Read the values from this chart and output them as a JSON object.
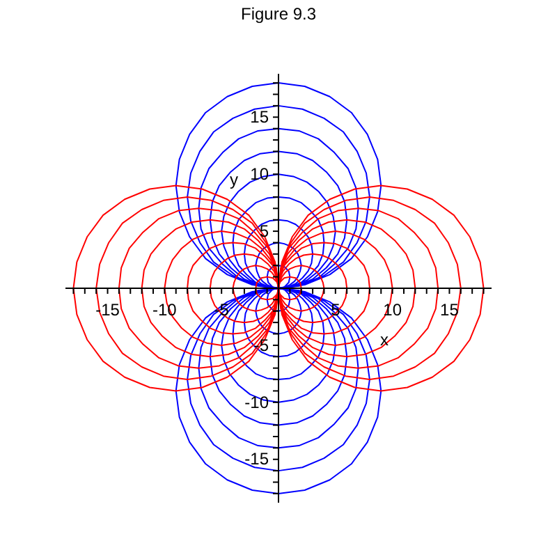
{
  "chart_data": {
    "type": "line",
    "title": "Figure 9.3",
    "xlabel": "x",
    "ylabel": "y",
    "xlim": [
      -18.7,
      18.7
    ],
    "ylim": [
      -18.8,
      18.8
    ],
    "xticks": [
      {
        "value": -18,
        "label": null
      },
      {
        "value": -17,
        "label": null
      },
      {
        "value": -16,
        "label": null
      },
      -15,
      {
        "value": -14,
        "label": null
      },
      {
        "value": -13,
        "label": null
      },
      {
        "value": -12,
        "label": null
      },
      {
        "value": -11,
        "label": null
      },
      -10,
      {
        "value": -9,
        "label": null
      },
      {
        "value": -8,
        "label": null
      },
      {
        "value": -7,
        "label": null
      },
      {
        "value": -6,
        "label": null
      },
      -5,
      {
        "value": -4,
        "label": null
      },
      {
        "value": -3,
        "label": null
      },
      {
        "value": -2,
        "label": null
      },
      {
        "value": -1,
        "label": null
      },
      {
        "value": 1,
        "label": null
      },
      {
        "value": 2,
        "label": null
      },
      {
        "value": 3,
        "label": null
      },
      {
        "value": 4,
        "label": null
      },
      5,
      {
        "value": 6,
        "label": null
      },
      {
        "value": 7,
        "label": null
      },
      {
        "value": 8,
        "label": null
      },
      {
        "value": 9,
        "label": null
      },
      10,
      {
        "value": 11,
        "label": null
      },
      {
        "value": 12,
        "label": null
      },
      {
        "value": 13,
        "label": null
      },
      {
        "value": 14,
        "label": null
      },
      15,
      {
        "value": 16,
        "label": null
      },
      {
        "value": 17,
        "label": null
      },
      {
        "value": 18,
        "label": null
      }
    ],
    "yticks": [
      {
        "value": -18,
        "label": null
      },
      {
        "value": -17,
        "label": null
      },
      {
        "value": -16,
        "label": null
      },
      -15,
      {
        "value": -14,
        "label": null
      },
      {
        "value": -13,
        "label": null
      },
      {
        "value": -12,
        "label": null
      },
      {
        "value": -11,
        "label": null
      },
      -10,
      {
        "value": -9,
        "label": null
      },
      {
        "value": -8,
        "label": null
      },
      {
        "value": -7,
        "label": null
      },
      {
        "value": -6,
        "label": null
      },
      -5,
      {
        "value": -4,
        "label": null
      },
      {
        "value": -3,
        "label": null
      },
      {
        "value": -2,
        "label": null
      },
      {
        "value": -1,
        "label": null
      },
      {
        "value": 1,
        "label": null
      },
      {
        "value": 2,
        "label": null
      },
      {
        "value": 3,
        "label": null
      },
      {
        "value": 4,
        "label": null
      },
      5,
      {
        "value": 6,
        "label": null
      },
      {
        "value": 7,
        "label": null
      },
      {
        "value": 8,
        "label": null
      },
      {
        "value": 9,
        "label": null
      },
      10,
      {
        "value": 11,
        "label": null
      },
      {
        "value": 12,
        "label": null
      },
      {
        "value": 13,
        "label": null
      },
      {
        "value": 14,
        "label": null
      },
      15,
      {
        "value": 16,
        "label": null
      },
      {
        "value": 17,
        "label": null
      },
      {
        "value": 18,
        "label": null
      }
    ],
    "series": [
      {
        "color": "#0000ff",
        "x": [
          -1,
          -0.9,
          -0.5,
          0,
          0.5,
          0.9,
          1
        ],
        "values": [
          1,
          0.5,
          0.1,
          0,
          0.1,
          0.5,
          1
        ]
      },
      {
        "color": "#0000ff",
        "x": [
          -1,
          -0.9,
          -0.5,
          0,
          0.5,
          0.9,
          1
        ],
        "values": [
          1,
          1.5,
          1.9,
          2,
          1.9,
          1.5,
          1
        ]
      },
      {
        "color": "#0000ff",
        "x": [
          -2,
          -1.9,
          -1.7,
          -1.4,
          -1,
          -0.5,
          0,
          0.5,
          1,
          1.4,
          1.7,
          1.9,
          2
        ],
        "values": [
          2,
          1.5,
          1,
          0.6,
          0.3,
          0.1,
          0,
          0.1,
          0.3,
          0.6,
          1,
          1.5,
          2
        ]
      },
      {
        "color": "#0000ff",
        "x": [
          -2,
          -1.9,
          -1.7,
          -1.4,
          -1,
          -0.5,
          0,
          0.5,
          1,
          1.4,
          1.7,
          1.9,
          2
        ],
        "values": [
          2,
          2.5,
          3,
          3.4,
          3.7,
          3.9,
          4,
          3.9,
          3.7,
          3.4,
          3,
          2.5,
          2
        ]
      },
      {
        "color": "#0000ff",
        "x": [
          -3,
          -2.9,
          -2.6,
          -2.1,
          -1.5,
          -0.8,
          0,
          0.8,
          1.5,
          2.1,
          2.6,
          2.9,
          3
        ],
        "values": [
          3,
          2.2,
          1.5,
          0.9,
          0.4,
          0.1,
          0,
          0.1,
          0.4,
          0.9,
          1.5,
          2.2,
          3
        ]
      },
      {
        "color": "#0000ff",
        "x": [
          -3,
          -2.9,
          -2.6,
          -2.1,
          -1.5,
          -0.8,
          0,
          0.8,
          1.5,
          2.1,
          2.6,
          2.9,
          3
        ],
        "values": [
          3,
          3.8,
          4.5,
          5.1,
          5.6,
          5.9,
          6,
          5.9,
          5.6,
          5.1,
          4.5,
          3.8,
          3
        ]
      },
      {
        "color": "#0000ff",
        "x": [
          -4,
          -3.9,
          -3.5,
          -2.8,
          -2,
          -1,
          0,
          1,
          2,
          2.8,
          3.5,
          3.9,
          4
        ],
        "values": [
          4,
          3,
          2,
          1.2,
          0.5,
          0.1,
          0,
          0.1,
          0.5,
          1.2,
          2,
          3,
          4
        ]
      },
      {
        "color": "#0000ff",
        "x": [
          -4,
          -3.9,
          -3.5,
          -2.8,
          -2,
          -1,
          0,
          1,
          2,
          2.8,
          3.5,
          3.9,
          4
        ],
        "values": [
          4,
          5,
          6,
          6.8,
          7.5,
          7.9,
          8,
          7.9,
          7.5,
          6.8,
          6,
          5,
          4
        ]
      },
      {
        "color": "#0000ff",
        "x": [
          -5,
          -4.8,
          -4.3,
          -3.5,
          -2.5,
          -1.3,
          0,
          1.3,
          2.5,
          3.5,
          4.3,
          4.8,
          5
        ],
        "values": [
          5,
          3.7,
          2.5,
          1.5,
          0.7,
          0.2,
          0,
          0.2,
          0.7,
          1.5,
          2.5,
          3.7,
          5
        ]
      },
      {
        "color": "#0000ff",
        "x": [
          -5,
          -4.8,
          -4.3,
          -3.5,
          -2.5,
          -1.3,
          0,
          1.3,
          2.5,
          3.5,
          4.3,
          4.8,
          5
        ],
        "values": [
          5,
          6.3,
          7.5,
          8.5,
          9.3,
          9.8,
          10,
          9.8,
          9.3,
          8.5,
          7.5,
          6.3,
          5
        ]
      },
      {
        "color": "#0000ff",
        "x": [
          -6,
          -5.8,
          -5.2,
          -4.2,
          -3,
          -1.6,
          0,
          1.6,
          3,
          4.2,
          5.2,
          5.8,
          6
        ],
        "values": [
          6,
          4.4,
          3,
          1.8,
          0.8,
          0.2,
          0,
          0.2,
          0.8,
          1.8,
          3,
          4.4,
          6
        ]
      },
      {
        "color": "#0000ff",
        "x": [
          -6,
          -5.8,
          -5.2,
          -4.2,
          -3,
          -1.6,
          0,
          1.6,
          3,
          4.2,
          5.2,
          5.8,
          6
        ],
        "values": [
          6,
          7.6,
          9,
          10.2,
          11.2,
          11.8,
          12,
          11.8,
          11.2,
          10.2,
          9,
          7.6,
          6
        ]
      },
      {
        "color": "#0000ff",
        "x": [
          -7,
          -6.8,
          -6.1,
          -4.9,
          -3.5,
          -1.8,
          0,
          1.8,
          3.5,
          4.9,
          6.1,
          6.8,
          7
        ],
        "values": [
          7,
          5.2,
          3.5,
          2.1,
          0.9,
          0.2,
          0,
          0.2,
          0.9,
          2.1,
          3.5,
          5.2,
          7
        ]
      },
      {
        "color": "#0000ff",
        "x": [
          -7,
          -6.8,
          -6.1,
          -4.9,
          -3.5,
          -1.8,
          0,
          1.8,
          3.5,
          4.9,
          6.1,
          6.8,
          7
        ],
        "values": [
          7,
          8.8,
          10.5,
          11.9,
          13.1,
          13.8,
          14,
          13.8,
          13.1,
          11.9,
          10.5,
          8.8,
          7
        ]
      },
      {
        "color": "#0000ff",
        "x": [
          -8,
          -7.7,
          -6.9,
          -5.7,
          -4,
          -2.1,
          0,
          2.1,
          4,
          5.7,
          6.9,
          7.7,
          8
        ],
        "values": [
          8,
          5.9,
          4,
          2.3,
          1.1,
          0.3,
          0,
          0.3,
          1.1,
          2.3,
          4,
          5.9,
          8
        ]
      },
      {
        "color": "#0000ff",
        "x": [
          -8,
          -7.7,
          -6.9,
          -5.7,
          -4,
          -2.1,
          0,
          2.1,
          4,
          5.7,
          6.9,
          7.7,
          8
        ],
        "values": [
          8,
          10.1,
          12,
          13.7,
          14.9,
          15.7,
          16,
          15.7,
          14.9,
          13.7,
          12,
          10.1,
          8
        ]
      },
      {
        "color": "#0000ff",
        "x": [
          -9,
          -8.7,
          -7.8,
          -6.4,
          -4.5,
          -2.3,
          0,
          2.3,
          4.5,
          6.4,
          7.8,
          8.7,
          9
        ],
        "values": [
          9,
          6.7,
          4.5,
          2.6,
          1.2,
          0.3,
          0,
          0.3,
          1.2,
          2.6,
          4.5,
          6.7,
          9
        ]
      },
      {
        "color": "#0000ff",
        "x": [
          -9,
          -8.7,
          -7.8,
          -6.4,
          -4.5,
          -2.3,
          0,
          2.3,
          4.5,
          6.4,
          7.8,
          8.7,
          9
        ],
        "values": [
          9,
          11.3,
          13.5,
          15.4,
          16.8,
          17.7,
          18,
          17.7,
          16.8,
          15.4,
          13.5,
          11.3,
          9
        ]
      },
      {
        "color": "#0000ff",
        "x": [
          -1,
          -0.9,
          -0.5,
          0,
          0.5,
          0.9,
          1
        ],
        "values": [
          -1,
          -0.5,
          -0.1,
          0,
          -0.1,
          -0.5,
          -1
        ]
      },
      {
        "color": "#0000ff",
        "x": [
          -1,
          -0.9,
          -0.5,
          0,
          0.5,
          0.9,
          1
        ],
        "values": [
          -1,
          -1.5,
          -1.9,
          -2,
          -1.9,
          -1.5,
          -1
        ]
      },
      {
        "color": "#0000ff",
        "x": [
          -2,
          -1.9,
          -1.7,
          -1.4,
          -1,
          -0.5,
          0,
          0.5,
          1,
          1.4,
          1.7,
          1.9,
          2
        ],
        "values": [
          -2,
          -1.5,
          -1,
          -0.6,
          -0.3,
          -0.1,
          0,
          -0.1,
          -0.3,
          -0.6,
          -1,
          -1.5,
          -2
        ]
      },
      {
        "color": "#0000ff",
        "x": [
          -2,
          -1.9,
          -1.7,
          -1.4,
          -1,
          -0.5,
          0,
          0.5,
          1,
          1.4,
          1.7,
          1.9,
          2
        ],
        "values": [
          -2,
          -2.5,
          -3,
          -3.4,
          -3.7,
          -3.9,
          -4,
          -3.9,
          -3.7,
          -3.4,
          -3,
          -2.5,
          -2
        ]
      },
      {
        "color": "#0000ff",
        "x": [
          -3,
          -2.9,
          -2.6,
          -2.1,
          -1.5,
          -0.8,
          0,
          0.8,
          1.5,
          2.1,
          2.6,
          2.9,
          3
        ],
        "values": [
          -3,
          -2.2,
          -1.5,
          -0.9,
          -0.4,
          -0.1,
          0,
          -0.1,
          -0.4,
          -0.9,
          -1.5,
          -2.2,
          -3
        ]
      },
      {
        "color": "#0000ff",
        "x": [
          -3,
          -2.9,
          -2.6,
          -2.1,
          -1.5,
          -0.8,
          0,
          0.8,
          1.5,
          2.1,
          2.6,
          2.9,
          3
        ],
        "values": [
          -3,
          -3.8,
          -4.5,
          -5.1,
          -5.6,
          -5.9,
          -6,
          -5.9,
          -5.6,
          -5.1,
          -4.5,
          -3.8,
          -3
        ]
      },
      {
        "color": "#0000ff",
        "x": [
          -4,
          -3.9,
          -3.5,
          -2.8,
          -2,
          -1,
          0,
          1,
          2,
          2.8,
          3.5,
          3.9,
          4
        ],
        "values": [
          -4,
          -3,
          -2,
          -1.2,
          -0.5,
          -0.1,
          0,
          -0.1,
          -0.5,
          -1.2,
          -2,
          -3,
          -4
        ]
      },
      {
        "color": "#0000ff",
        "x": [
          -4,
          -3.9,
          -3.5,
          -2.8,
          -2,
          -1,
          0,
          1,
          2,
          2.8,
          3.5,
          3.9,
          4
        ],
        "values": [
          -4,
          -5,
          -6,
          -6.8,
          -7.5,
          -7.9,
          -8,
          -7.9,
          -7.5,
          -6.8,
          -6,
          -5,
          -4
        ]
      },
      {
        "color": "#0000ff",
        "x": [
          -5,
          -4.8,
          -4.3,
          -3.5,
          -2.5,
          -1.3,
          0,
          1.3,
          2.5,
          3.5,
          4.3,
          4.8,
          5
        ],
        "values": [
          -5,
          -3.7,
          -2.5,
          -1.5,
          -0.7,
          -0.2,
          0,
          -0.2,
          -0.7,
          -1.5,
          -2.5,
          -3.7,
          -5
        ]
      },
      {
        "color": "#0000ff",
        "x": [
          -5,
          -4.8,
          -4.3,
          -3.5,
          -2.5,
          -1.3,
          0,
          1.3,
          2.5,
          3.5,
          4.3,
          4.8,
          5
        ],
        "values": [
          -5,
          -6.3,
          -7.5,
          -8.5,
          -9.3,
          -9.8,
          -10,
          -9.8,
          -9.3,
          -8.5,
          -7.5,
          -6.3,
          -5
        ]
      },
      {
        "color": "#0000ff",
        "x": [
          -6,
          -5.8,
          -5.2,
          -4.2,
          -3,
          -1.6,
          0,
          1.6,
          3,
          4.2,
          5.2,
          5.8,
          6
        ],
        "values": [
          -6,
          -4.4,
          -3,
          -1.8,
          -0.8,
          -0.2,
          0,
          -0.2,
          -0.8,
          -1.8,
          -3,
          -4.4,
          -6
        ]
      },
      {
        "color": "#0000ff",
        "x": [
          -6,
          -5.8,
          -5.2,
          -4.2,
          -3,
          -1.6,
          0,
          1.6,
          3,
          4.2,
          5.2,
          5.8,
          6
        ],
        "values": [
          -6,
          -7.6,
          -9,
          -10.2,
          -11.2,
          -11.8,
          -12,
          -11.8,
          -11.2,
          -10.2,
          -9,
          -7.6,
          -6
        ]
      },
      {
        "color": "#0000ff",
        "x": [
          -7,
          -6.8,
          -6.1,
          -4.9,
          -3.5,
          -1.8,
          0,
          1.8,
          3.5,
          4.9,
          6.1,
          6.8,
          7
        ],
        "values": [
          -7,
          -5.2,
          -3.5,
          -2.1,
          -0.9,
          -0.2,
          0,
          -0.2,
          -0.9,
          -2.1,
          -3.5,
          -5.2,
          -7
        ]
      },
      {
        "color": "#0000ff",
        "x": [
          -7,
          -6.8,
          -6.1,
          -4.9,
          -3.5,
          -1.8,
          0,
          1.8,
          3.5,
          4.9,
          6.1,
          6.8,
          7
        ],
        "values": [
          -7,
          -8.8,
          -10.5,
          -11.9,
          -13.1,
          -13.8,
          -14,
          -13.8,
          -13.1,
          -11.9,
          -10.5,
          -8.8,
          -7
        ]
      },
      {
        "color": "#0000ff",
        "x": [
          -8,
          -7.7,
          -6.9,
          -5.7,
          -4,
          -2.1,
          0,
          2.1,
          4,
          5.7,
          6.9,
          7.7,
          8
        ],
        "values": [
          -8,
          -5.9,
          -4,
          -2.3,
          -1.1,
          -0.3,
          0,
          -0.3,
          -1.1,
          -2.3,
          -4,
          -5.9,
          -8
        ]
      },
      {
        "color": "#0000ff",
        "x": [
          -8,
          -7.7,
          -6.9,
          -5.7,
          -4,
          -2.1,
          0,
          2.1,
          4,
          5.7,
          6.9,
          7.7,
          8
        ],
        "values": [
          -8,
          -10.1,
          -12,
          -13.7,
          -14.9,
          -15.7,
          -16,
          -15.7,
          -14.9,
          -13.7,
          -12,
          -10.1,
          -8
        ]
      },
      {
        "color": "#0000ff",
        "x": [
          -9,
          -8.7,
          -7.8,
          -6.4,
          -4.5,
          -2.3,
          0,
          2.3,
          4.5,
          6.4,
          7.8,
          8.7,
          9
        ],
        "values": [
          -9,
          -6.7,
          -4.5,
          -2.6,
          -1.2,
          -0.3,
          0,
          -0.3,
          -1.2,
          -2.6,
          -4.5,
          -6.7,
          -9
        ]
      },
      {
        "color": "#0000ff",
        "x": [
          -9,
          -8.7,
          -7.8,
          -6.4,
          -4.5,
          -2.3,
          0,
          2.3,
          4.5,
          6.4,
          7.8,
          8.7,
          9
        ],
        "values": [
          -9,
          -11.3,
          -13.5,
          -15.4,
          -16.8,
          -17.7,
          -18,
          -17.7,
          -16.8,
          -15.4,
          -13.5,
          -11.3,
          -9
        ]
      },
      {
        "color": "#ff0000",
        "x": [
          0,
          0.1,
          0.5,
          1,
          1.5,
          1.9,
          2
        ],
        "values": [
          0,
          0.5,
          0.9,
          1,
          0.9,
          0.5,
          0
        ]
      },
      {
        "color": "#ff0000",
        "x": [
          0,
          0.1,
          0.5,
          1,
          1.5,
          1.9,
          2
        ],
        "values": [
          0,
          -0.5,
          -0.9,
          -1,
          -0.9,
          -0.5,
          0
        ]
      },
      {
        "color": "#ff0000",
        "x": [
          0,
          0.1,
          0.3,
          0.6,
          1,
          1.5,
          2,
          2.5,
          3,
          3.4,
          3.7,
          3.9,
          4
        ],
        "values": [
          0,
          0.5,
          1,
          1.4,
          1.7,
          1.9,
          2,
          1.9,
          1.7,
          1.4,
          1,
          0.5,
          0
        ]
      },
      {
        "color": "#ff0000",
        "x": [
          0,
          0.1,
          0.3,
          0.6,
          1,
          1.5,
          2,
          2.5,
          3,
          3.4,
          3.7,
          3.9,
          4
        ],
        "values": [
          0,
          -0.5,
          -1,
          -1.4,
          -1.7,
          -1.9,
          -2,
          -1.9,
          -1.7,
          -1.4,
          -1,
          -0.5,
          0
        ]
      },
      {
        "color": "#ff0000",
        "x": [
          0,
          0.1,
          0.4,
          0.9,
          1.5,
          2.2,
          3,
          3.8,
          4.5,
          5.1,
          5.6,
          5.9,
          6
        ],
        "values": [
          0,
          0.8,
          1.5,
          2.1,
          2.6,
          2.9,
          3,
          2.9,
          2.6,
          2.1,
          1.5,
          0.8,
          0
        ]
      },
      {
        "color": "#ff0000",
        "x": [
          0,
          0.1,
          0.4,
          0.9,
          1.5,
          2.2,
          3,
          3.8,
          4.5,
          5.1,
          5.6,
          5.9,
          6
        ],
        "values": [
          0,
          -0.8,
          -1.5,
          -2.1,
          -2.6,
          -2.9,
          -3,
          -2.9,
          -2.6,
          -2.1,
          -1.5,
          -0.8,
          0
        ]
      },
      {
        "color": "#ff0000",
        "x": [
          0,
          0.1,
          0.5,
          1.2,
          2,
          3,
          4,
          5,
          6,
          6.8,
          7.5,
          7.9,
          8
        ],
        "values": [
          0,
          1,
          2,
          2.8,
          3.5,
          3.9,
          4,
          3.9,
          3.5,
          2.8,
          2,
          1,
          0
        ]
      },
      {
        "color": "#ff0000",
        "x": [
          0,
          0.1,
          0.5,
          1.2,
          2,
          3,
          4,
          5,
          6,
          6.8,
          7.5,
          7.9,
          8
        ],
        "values": [
          0,
          -1,
          -2,
          -2.8,
          -3.5,
          -3.9,
          -4,
          -3.9,
          -3.5,
          -2.8,
          -2,
          -1,
          0
        ]
      },
      {
        "color": "#ff0000",
        "x": [
          0,
          0.2,
          0.7,
          1.5,
          2.5,
          3.7,
          5,
          6.3,
          7.5,
          8.5,
          9.3,
          9.8,
          10
        ],
        "values": [
          0,
          1.3,
          2.5,
          3.5,
          4.3,
          4.8,
          5,
          4.8,
          4.3,
          3.5,
          2.5,
          1.3,
          0
        ]
      },
      {
        "color": "#ff0000",
        "x": [
          0,
          0.2,
          0.7,
          1.5,
          2.5,
          3.7,
          5,
          6.3,
          7.5,
          8.5,
          9.3,
          9.8,
          10
        ],
        "values": [
          0,
          -1.3,
          -2.5,
          -3.5,
          -4.3,
          -4.8,
          -5,
          -4.8,
          -4.3,
          -3.5,
          -2.5,
          -1.3,
          0
        ]
      },
      {
        "color": "#ff0000",
        "x": [
          0,
          0.2,
          0.8,
          1.8,
          3,
          4.4,
          6,
          7.6,
          9,
          10.2,
          11.2,
          11.8,
          12
        ],
        "values": [
          0,
          1.6,
          3,
          4.2,
          5.2,
          5.8,
          6,
          5.8,
          5.2,
          4.2,
          3,
          1.6,
          0
        ]
      },
      {
        "color": "#ff0000",
        "x": [
          0,
          0.2,
          0.8,
          1.8,
          3,
          4.4,
          6,
          7.6,
          9,
          10.2,
          11.2,
          11.8,
          12
        ],
        "values": [
          0,
          -1.6,
          -3,
          -4.2,
          -5.2,
          -5.8,
          -6,
          -5.8,
          -5.2,
          -4.2,
          -3,
          -1.6,
          0
        ]
      },
      {
        "color": "#ff0000",
        "x": [
          0,
          0.2,
          0.9,
          2.1,
          3.5,
          5.2,
          7,
          8.8,
          10.5,
          11.9,
          13.1,
          13.8,
          14
        ],
        "values": [
          0,
          1.8,
          3.5,
          4.9,
          6.1,
          6.8,
          7,
          6.8,
          6.1,
          4.9,
          3.5,
          1.8,
          0
        ]
      },
      {
        "color": "#ff0000",
        "x": [
          0,
          0.2,
          0.9,
          2.1,
          3.5,
          5.2,
          7,
          8.8,
          10.5,
          11.9,
          13.1,
          13.8,
          14
        ],
        "values": [
          0,
          -1.8,
          -3.5,
          -4.9,
          -6.1,
          -6.8,
          -7,
          -6.8,
          -6.1,
          -4.9,
          -3.5,
          -1.8,
          0
        ]
      },
      {
        "color": "#ff0000",
        "x": [
          0,
          0.3,
          1.1,
          2.3,
          4,
          5.9,
          8,
          10.1,
          12,
          13.7,
          14.9,
          15.7,
          16
        ],
        "values": [
          0,
          2.1,
          4,
          5.7,
          6.9,
          7.7,
          8,
          7.7,
          6.9,
          5.7,
          4,
          2.1,
          0
        ]
      },
      {
        "color": "#ff0000",
        "x": [
          0,
          0.3,
          1.1,
          2.3,
          4,
          5.9,
          8,
          10.1,
          12,
          13.7,
          14.9,
          15.7,
          16
        ],
        "values": [
          0,
          -2.1,
          -4,
          -5.7,
          -6.9,
          -7.7,
          -8,
          -7.7,
          -6.9,
          -5.7,
          -4,
          -2.1,
          0
        ]
      },
      {
        "color": "#ff0000",
        "x": [
          0,
          0.3,
          1.2,
          2.6,
          4.5,
          6.7,
          9,
          11.3,
          13.5,
          15.4,
          16.8,
          17.7,
          18
        ],
        "values": [
          0,
          2.3,
          4.5,
          6.4,
          7.8,
          8.7,
          9,
          8.7,
          7.8,
          6.4,
          4.5,
          2.3,
          0
        ]
      },
      {
        "color": "#ff0000",
        "x": [
          0,
          0.3,
          1.2,
          2.6,
          4.5,
          6.7,
          9,
          11.3,
          13.5,
          15.4,
          16.8,
          17.7,
          18
        ],
        "values": [
          0,
          -2.3,
          -4.5,
          -6.4,
          -7.8,
          -8.7,
          -9,
          -8.7,
          -7.8,
          -6.4,
          -4.5,
          -2.3,
          0
        ]
      },
      {
        "color": "#ff0000",
        "x": [
          -2,
          -1.9,
          -1.5,
          -1,
          -0.5,
          -0.1,
          0
        ],
        "values": [
          0,
          0.5,
          0.9,
          1,
          0.9,
          0.5,
          0
        ]
      },
      {
        "color": "#ff0000",
        "x": [
          -2,
          -1.9,
          -1.5,
          -1,
          -0.5,
          -0.1,
          0
        ],
        "values": [
          0,
          -0.5,
          -0.9,
          -1,
          -0.9,
          -0.5,
          0
        ]
      },
      {
        "color": "#ff0000",
        "x": [
          -4,
          -3.9,
          -3.7,
          -3.4,
          -3,
          -2.5,
          -2,
          -1.5,
          -1,
          -0.6,
          -0.3,
          -0.1,
          0
        ],
        "values": [
          0,
          0.5,
          1,
          1.4,
          1.7,
          1.9,
          2,
          1.9,
          1.7,
          1.4,
          1,
          0.5,
          0
        ]
      },
      {
        "color": "#ff0000",
        "x": [
          -4,
          -3.9,
          -3.7,
          -3.4,
          -3,
          -2.5,
          -2,
          -1.5,
          -1,
          -0.6,
          -0.3,
          -0.1,
          0
        ],
        "values": [
          0,
          -0.5,
          -1,
          -1.4,
          -1.7,
          -1.9,
          -2,
          -1.9,
          -1.7,
          -1.4,
          -1,
          -0.5,
          0
        ]
      },
      {
        "color": "#ff0000",
        "x": [
          -6,
          -5.9,
          -5.6,
          -5.1,
          -4.5,
          -3.8,
          -3,
          -2.2,
          -1.5,
          -0.9,
          -0.4,
          -0.1,
          0
        ],
        "values": [
          0,
          0.8,
          1.5,
          2.1,
          2.6,
          2.9,
          3,
          2.9,
          2.6,
          2.1,
          1.5,
          0.8,
          0
        ]
      },
      {
        "color": "#ff0000",
        "x": [
          -6,
          -5.9,
          -5.6,
          -5.1,
          -4.5,
          -3.8,
          -3,
          -2.2,
          -1.5,
          -0.9,
          -0.4,
          -0.1,
          0
        ],
        "values": [
          0,
          -0.8,
          -1.5,
          -2.1,
          -2.6,
          -2.9,
          -3,
          -2.9,
          -2.6,
          -2.1,
          -1.5,
          -0.8,
          0
        ]
      },
      {
        "color": "#ff0000",
        "x": [
          -8,
          -7.9,
          -7.5,
          -6.8,
          -6,
          -5,
          -4,
          -3,
          -2,
          -1.2,
          -0.5,
          -0.1,
          0
        ],
        "values": [
          0,
          1,
          2,
          2.8,
          3.5,
          3.9,
          4,
          3.9,
          3.5,
          2.8,
          2,
          1,
          0
        ]
      },
      {
        "color": "#ff0000",
        "x": [
          -8,
          -7.9,
          -7.5,
          -6.8,
          -6,
          -5,
          -4,
          -3,
          -2,
          -1.2,
          -0.5,
          -0.1,
          0
        ],
        "values": [
          0,
          -1,
          -2,
          -2.8,
          -3.5,
          -3.9,
          -4,
          -3.9,
          -3.5,
          -2.8,
          -2,
          -1,
          0
        ]
      },
      {
        "color": "#ff0000",
        "x": [
          -10,
          -9.8,
          -9.3,
          -8.5,
          -7.5,
          -6.3,
          -5,
          -3.7,
          -2.5,
          -1.5,
          -0.7,
          -0.2,
          0
        ],
        "values": [
          0,
          1.3,
          2.5,
          3.5,
          4.3,
          4.8,
          5,
          4.8,
          4.3,
          3.5,
          2.5,
          1.3,
          0
        ]
      },
      {
        "color": "#ff0000",
        "x": [
          -10,
          -9.8,
          -9.3,
          -8.5,
          -7.5,
          -6.3,
          -5,
          -3.7,
          -2.5,
          -1.5,
          -0.7,
          -0.2,
          0
        ],
        "values": [
          0,
          -1.3,
          -2.5,
          -3.5,
          -4.3,
          -4.8,
          -5,
          -4.8,
          -4.3,
          -3.5,
          -2.5,
          -1.3,
          0
        ]
      },
      {
        "color": "#ff0000",
        "x": [
          -12,
          -11.8,
          -11.2,
          -10.2,
          -9,
          -7.6,
          -6,
          -4.4,
          -3,
          -1.8,
          -0.8,
          -0.2,
          0
        ],
        "values": [
          0,
          1.6,
          3,
          4.2,
          5.2,
          5.8,
          6,
          5.8,
          5.2,
          4.2,
          3,
          1.6,
          0
        ]
      },
      {
        "color": "#ff0000",
        "x": [
          -12,
          -11.8,
          -11.2,
          -10.2,
          -9,
          -7.6,
          -6,
          -4.4,
          -3,
          -1.8,
          -0.8,
          -0.2,
          0
        ],
        "values": [
          0,
          -1.6,
          -3,
          -4.2,
          -5.2,
          -5.8,
          -6,
          -5.8,
          -5.2,
          -4.2,
          -3,
          -1.6,
          0
        ]
      },
      {
        "color": "#ff0000",
        "x": [
          -14,
          -13.8,
          -13.1,
          -11.9,
          -10.5,
          -8.8,
          -7,
          -5.2,
          -3.5,
          -2.1,
          -0.9,
          -0.2,
          0
        ],
        "values": [
          0,
          1.8,
          3.5,
          4.9,
          6.1,
          6.8,
          7,
          6.8,
          6.1,
          4.9,
          3.5,
          1.8,
          0
        ]
      },
      {
        "color": "#ff0000",
        "x": [
          -14,
          -13.8,
          -13.1,
          -11.9,
          -10.5,
          -8.8,
          -7,
          -5.2,
          -3.5,
          -2.1,
          -0.9,
          -0.2,
          0
        ],
        "values": [
          0,
          -1.8,
          -3.5,
          -4.9,
          -6.1,
          -6.8,
          -7,
          -6.8,
          -6.1,
          -4.9,
          -3.5,
          -1.8,
          0
        ]
      },
      {
        "color": "#ff0000",
        "x": [
          -16,
          -15.7,
          -14.9,
          -13.7,
          -12,
          -10.1,
          -8,
          -5.9,
          -4,
          -2.3,
          -1.1,
          -0.3,
          0
        ],
        "values": [
          0,
          2.1,
          4,
          5.7,
          6.9,
          7.7,
          8,
          7.7,
          6.9,
          5.7,
          4,
          2.1,
          0
        ]
      },
      {
        "color": "#ff0000",
        "x": [
          -16,
          -15.7,
          -14.9,
          -13.7,
          -12,
          -10.1,
          -8,
          -5.9,
          -4,
          -2.3,
          -1.1,
          -0.3,
          0
        ],
        "values": [
          0,
          -2.1,
          -4,
          -5.7,
          -6.9,
          -7.7,
          -8,
          -7.7,
          -6.9,
          -5.7,
          -4,
          -2.1,
          0
        ]
      },
      {
        "color": "#ff0000",
        "x": [
          -18,
          -17.7,
          -16.8,
          -15.4,
          -13.5,
          -11.3,
          -9,
          -6.7,
          -4.5,
          -2.6,
          -1.2,
          -0.3,
          0
        ],
        "values": [
          0,
          2.3,
          4.5,
          6.4,
          7.8,
          8.7,
          9,
          8.7,
          7.8,
          6.4,
          4.5,
          2.3,
          0
        ]
      },
      {
        "color": "#ff0000",
        "x": [
          -18,
          -17.7,
          -16.8,
          -15.4,
          -13.5,
          -11.3,
          -9,
          -6.7,
          -4.5,
          -2.6,
          -1.2,
          -0.3,
          0
        ],
        "values": [
          0,
          -2.3,
          -4.5,
          -6.4,
          -7.8,
          -8.7,
          -9,
          -8.7,
          -7.8,
          -6.4,
          -4.5,
          -2.3,
          0
        ]
      }
    ]
  }
}
